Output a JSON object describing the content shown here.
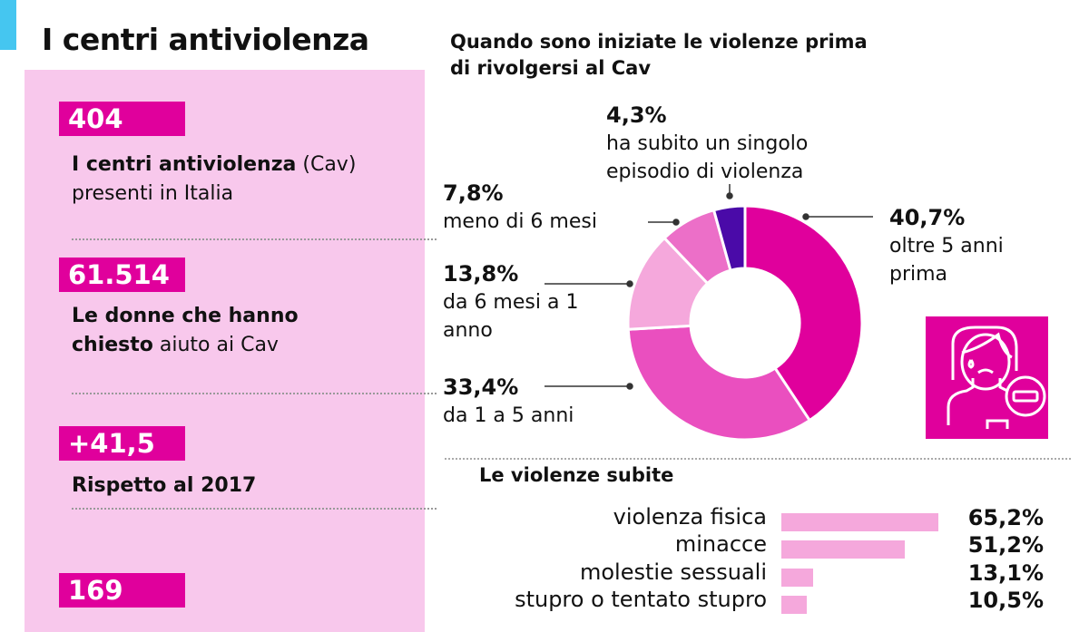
{
  "title": "I centri antiviolenza",
  "stats": [
    {
      "value": "404",
      "bold": "I centri antiviolenza",
      "rest": " (Cav)",
      "line2": "presenti in Italia"
    },
    {
      "value": "61.514",
      "bold": "Le donne che hanno",
      "line2_bold": "chiesto",
      "line2": " aiuto ai Cav"
    },
    {
      "value": "+41,5",
      "bold": "Rispetto al 2017"
    },
    {
      "value": "169"
    }
  ],
  "colors": {
    "accent": "#45c6f0",
    "magenta": "#e0009c",
    "panel": "#f8c8ec"
  },
  "chart_data": [
    {
      "type": "pie",
      "title": "Quando sono iniziate le violenze prima di rivolgersi al Cav",
      "slices": [
        {
          "label": "oltre 5 anni prima",
          "value": 40.7,
          "pct": "40,7%",
          "color": "#e0009c"
        },
        {
          "label": "da 1 a 5 anni",
          "value": 33.4,
          "pct": "33,4%",
          "color": "#ea4fbf"
        },
        {
          "label": "da 6 mesi a 1 anno",
          "value": 13.8,
          "pct": "13,8%",
          "color": "#f5a8dc"
        },
        {
          "label": "meno di 6 mesi",
          "value": 7.8,
          "pct": "7,8%",
          "color": "#ec6fc8"
        },
        {
          "label": "ha subito un singolo episodio di violenza",
          "value": 4.3,
          "pct": "4,3%",
          "color": "#4a0aa8"
        }
      ]
    },
    {
      "type": "bar",
      "title": "Le violenze subite",
      "categories": [
        "violenza fisica",
        "minacce",
        "molestie sessuali",
        "stupro o tentato stupro"
      ],
      "values": [
        65.2,
        51.2,
        13.1,
        10.5
      ],
      "labels": [
        "65,2%",
        "51,2%",
        "13,1%",
        "10,5%"
      ]
    }
  ],
  "icon": "sad-woman-minus-icon"
}
